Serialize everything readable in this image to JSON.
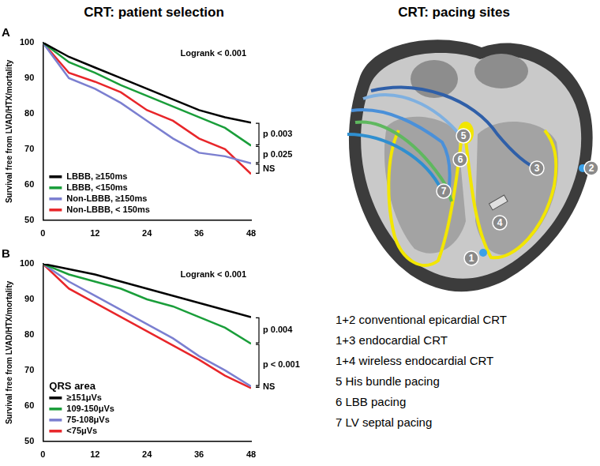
{
  "header": {
    "left": "CRT: patient selection",
    "right": "CRT: pacing sites"
  },
  "chart_data": [
    {
      "type": "line",
      "title": "A",
      "y_label": "Survival free from LVAD/HTX/mortality",
      "x": [
        0,
        6,
        12,
        18,
        24,
        30,
        36,
        42,
        48
      ],
      "series": [
        {
          "name": "LBBB, ≥150ms",
          "color": "#000000",
          "values": [
            100,
            96,
            93,
            90,
            87,
            84,
            81,
            79,
            77.5
          ]
        },
        {
          "name": "LBBB, <150ms",
          "color": "#1a9e3a",
          "values": [
            100,
            94.5,
            91.5,
            88,
            85,
            82,
            79,
            76,
            71
          ]
        },
        {
          "name": "Non-LBBB, ≥150ms",
          "color": "#7b7fd0",
          "values": [
            100,
            90,
            87,
            83,
            78,
            73,
            69,
            68,
            66
          ]
        },
        {
          "name": "Non-LBBB, < 150ms",
          "color": "#e8262a",
          "values": [
            100,
            91.5,
            89,
            86,
            81,
            78,
            73,
            70,
            63
          ]
        }
      ],
      "xlim": [
        0,
        48
      ],
      "xticks": [
        0,
        12,
        24,
        36,
        48
      ],
      "ylim": [
        50,
        100
      ],
      "yticks": [
        50,
        60,
        70,
        80,
        90,
        100
      ],
      "grid": false,
      "legend": "lower left",
      "annotation": "Logrank < 0.001",
      "bracket_labels": [
        "p 0.003",
        "p 0.025",
        "NS"
      ]
    },
    {
      "type": "line",
      "title": "B",
      "y_label": "Survival free from LVAD/HTX/mortality",
      "x": [
        0,
        6,
        12,
        18,
        24,
        30,
        36,
        42,
        48
      ],
      "series": [
        {
          "name": "≥151μVs",
          "color": "#000000",
          "values": [
            100,
            98.5,
            97,
            95,
            93,
            91,
            89,
            87,
            85
          ]
        },
        {
          "name": "109-150μVs",
          "color": "#1a9e3a",
          "values": [
            100,
            97,
            95,
            93,
            90,
            88,
            85,
            82,
            77.5
          ]
        },
        {
          "name": "75-108μVs",
          "color": "#7b7fd0",
          "values": [
            100,
            95,
            91,
            87,
            83,
            79,
            74,
            70,
            65.5
          ]
        },
        {
          "name": "<75μVs",
          "color": "#e8262a",
          "values": [
            100,
            93,
            89,
            85,
            81,
            77,
            73,
            68.5,
            65
          ]
        }
      ],
      "xlim": [
        0,
        48
      ],
      "xticks": [
        0,
        12,
        24,
        36,
        48
      ],
      "ylim": [
        50,
        100
      ],
      "yticks": [
        50,
        60,
        70,
        80,
        90,
        100
      ],
      "grid": false,
      "legend": "lower left",
      "legend_title": "QRS area",
      "annotation": "Logrank < 0.001",
      "bracket_labels": [
        "p 0.004",
        "p < 0.001",
        "NS"
      ]
    }
  ],
  "diagram": {
    "markers": [
      "1",
      "2",
      "3",
      "4",
      "5",
      "6",
      "7"
    ],
    "items": [
      "1+2 conventional epicardial CRT",
      "1+3 endocardial CRT",
      "1+4 wireless endocardial CRT",
      "5 His bundle pacing",
      "6 LBB pacing",
      "7 LV septal pacing"
    ]
  }
}
